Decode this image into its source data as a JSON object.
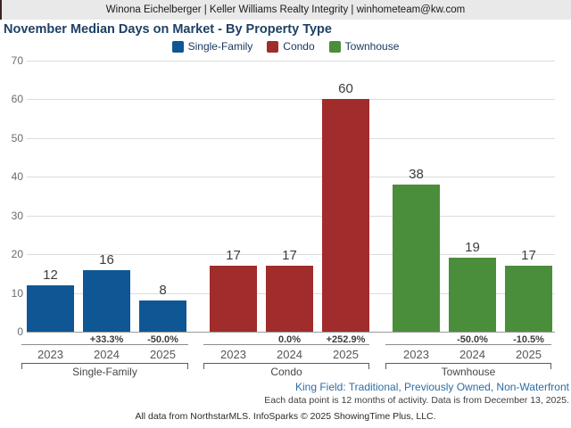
{
  "header": {
    "contact_line": "Winona Eichelberger | Keller Williams Realty Integrity | winhometeam@kw.com"
  },
  "title": "November Median Days on Market - By Property Type",
  "legend": [
    {
      "label": "Single-Family",
      "color": "#0e5794"
    },
    {
      "label": "Condo",
      "color": "#a02c2c"
    },
    {
      "label": "Townhouse",
      "color": "#4a8e3b"
    }
  ],
  "chart_data": {
    "type": "bar",
    "title": "November Median Days on Market - By Property Type",
    "xlabel": "",
    "ylabel": "",
    "ylim": [
      0,
      70
    ],
    "ytick_interval": 10,
    "grid": true,
    "legend_position": "top",
    "groups": [
      {
        "name": "Single-Family",
        "color": "#0e5794",
        "categories": [
          "2023",
          "2024",
          "2025"
        ],
        "values": [
          12,
          16,
          8
        ],
        "pct_change": [
          null,
          "+33.3%",
          "-50.0%"
        ]
      },
      {
        "name": "Condo",
        "color": "#a02c2c",
        "categories": [
          "2023",
          "2024",
          "2025"
        ],
        "values": [
          17,
          17,
          60
        ],
        "pct_change": [
          null,
          "0.0%",
          "+252.9%"
        ]
      },
      {
        "name": "Townhouse",
        "color": "#4a8e3b",
        "categories": [
          "2023",
          "2024",
          "2025"
        ],
        "values": [
          38,
          19,
          17
        ],
        "pct_change": [
          null,
          "-50.0%",
          "-10.5%"
        ]
      }
    ]
  },
  "footer": {
    "filters": "King Field: Traditional, Previously Owned, Non-Waterfront",
    "data_note": "Each data point is 12 months of activity. Data is from December 13, 2025.",
    "attribution": "All data from NorthstarMLS. InfoSparks © 2025 ShowingTime Plus, LLC."
  }
}
